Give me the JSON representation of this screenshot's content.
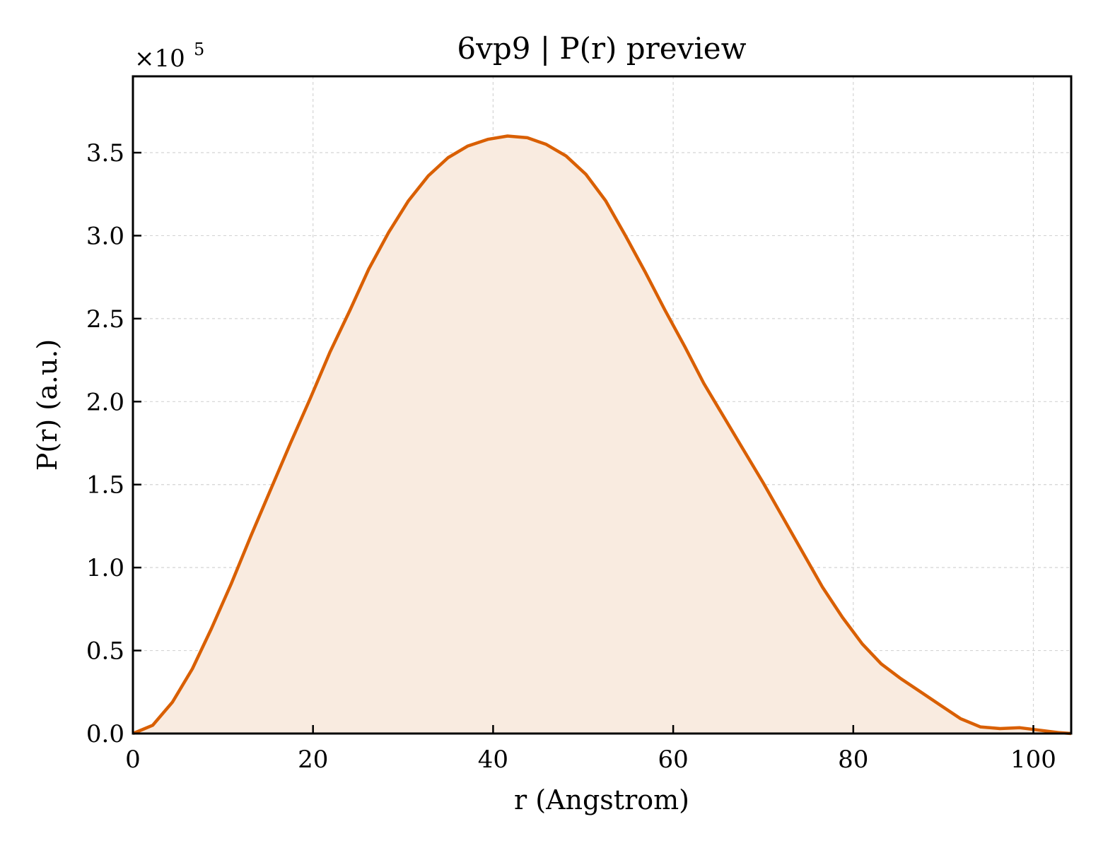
{
  "chart_data": {
    "type": "area",
    "title": "6vp9 | P(r) preview",
    "xlabel": "r (Angstrom)",
    "ylabel": "P(r) (a.u.)",
    "y_multiplier_label": "×10",
    "y_multiplier_exponent": "5",
    "xlim": [
      0,
      104.2
    ],
    "ylim": [
      0,
      3.96
    ],
    "y_scale_note": "values in units of 1e5",
    "x_ticks": [
      0,
      20,
      40,
      60,
      80,
      100
    ],
    "x_tick_labels": [
      "0",
      "20",
      "40",
      "60",
      "80",
      "100"
    ],
    "y_ticks": [
      0,
      0.5,
      1.0,
      1.5,
      2.0,
      2.5,
      3.0,
      3.5
    ],
    "y_tick_labels": [
      "0.0",
      "0.5",
      "1.0",
      "1.5",
      "2.0",
      "2.5",
      "3.0",
      "3.5"
    ],
    "grid": true,
    "line_color": "#d95f02",
    "fill_color": "#f9ebe0",
    "series": [
      {
        "x": [
          0,
          2.2,
          4.4,
          6.6,
          8.7,
          10.9,
          13.1,
          15.3,
          17.5,
          19.7,
          21.9,
          24.1,
          26.2,
          28.4,
          30.6,
          32.8,
          35.0,
          37.2,
          39.4,
          41.6,
          43.8,
          45.9,
          48.1,
          50.3,
          52.5,
          54.7,
          56.9,
          59.1,
          61.3,
          63.4,
          65.6,
          67.8,
          70.0,
          72.2,
          74.4,
          76.6,
          78.8,
          81.0,
          83.1,
          85.3,
          87.5,
          89.7,
          91.9,
          94.1,
          96.3,
          98.5,
          100.7,
          102.9,
          104.2
        ],
        "values": [
          0.0,
          0.05,
          0.19,
          0.39,
          0.63,
          0.9,
          1.19,
          1.47,
          1.75,
          2.02,
          2.3,
          2.55,
          2.8,
          3.02,
          3.21,
          3.36,
          3.47,
          3.54,
          3.58,
          3.6,
          3.59,
          3.55,
          3.48,
          3.37,
          3.21,
          3.0,
          2.78,
          2.55,
          2.33,
          2.11,
          1.91,
          1.71,
          1.51,
          1.3,
          1.09,
          0.88,
          0.7,
          0.54,
          0.42,
          0.33,
          0.25,
          0.17,
          0.09,
          0.04,
          0.03,
          0.035,
          0.02,
          0.005,
          0.0
        ]
      }
    ]
  }
}
